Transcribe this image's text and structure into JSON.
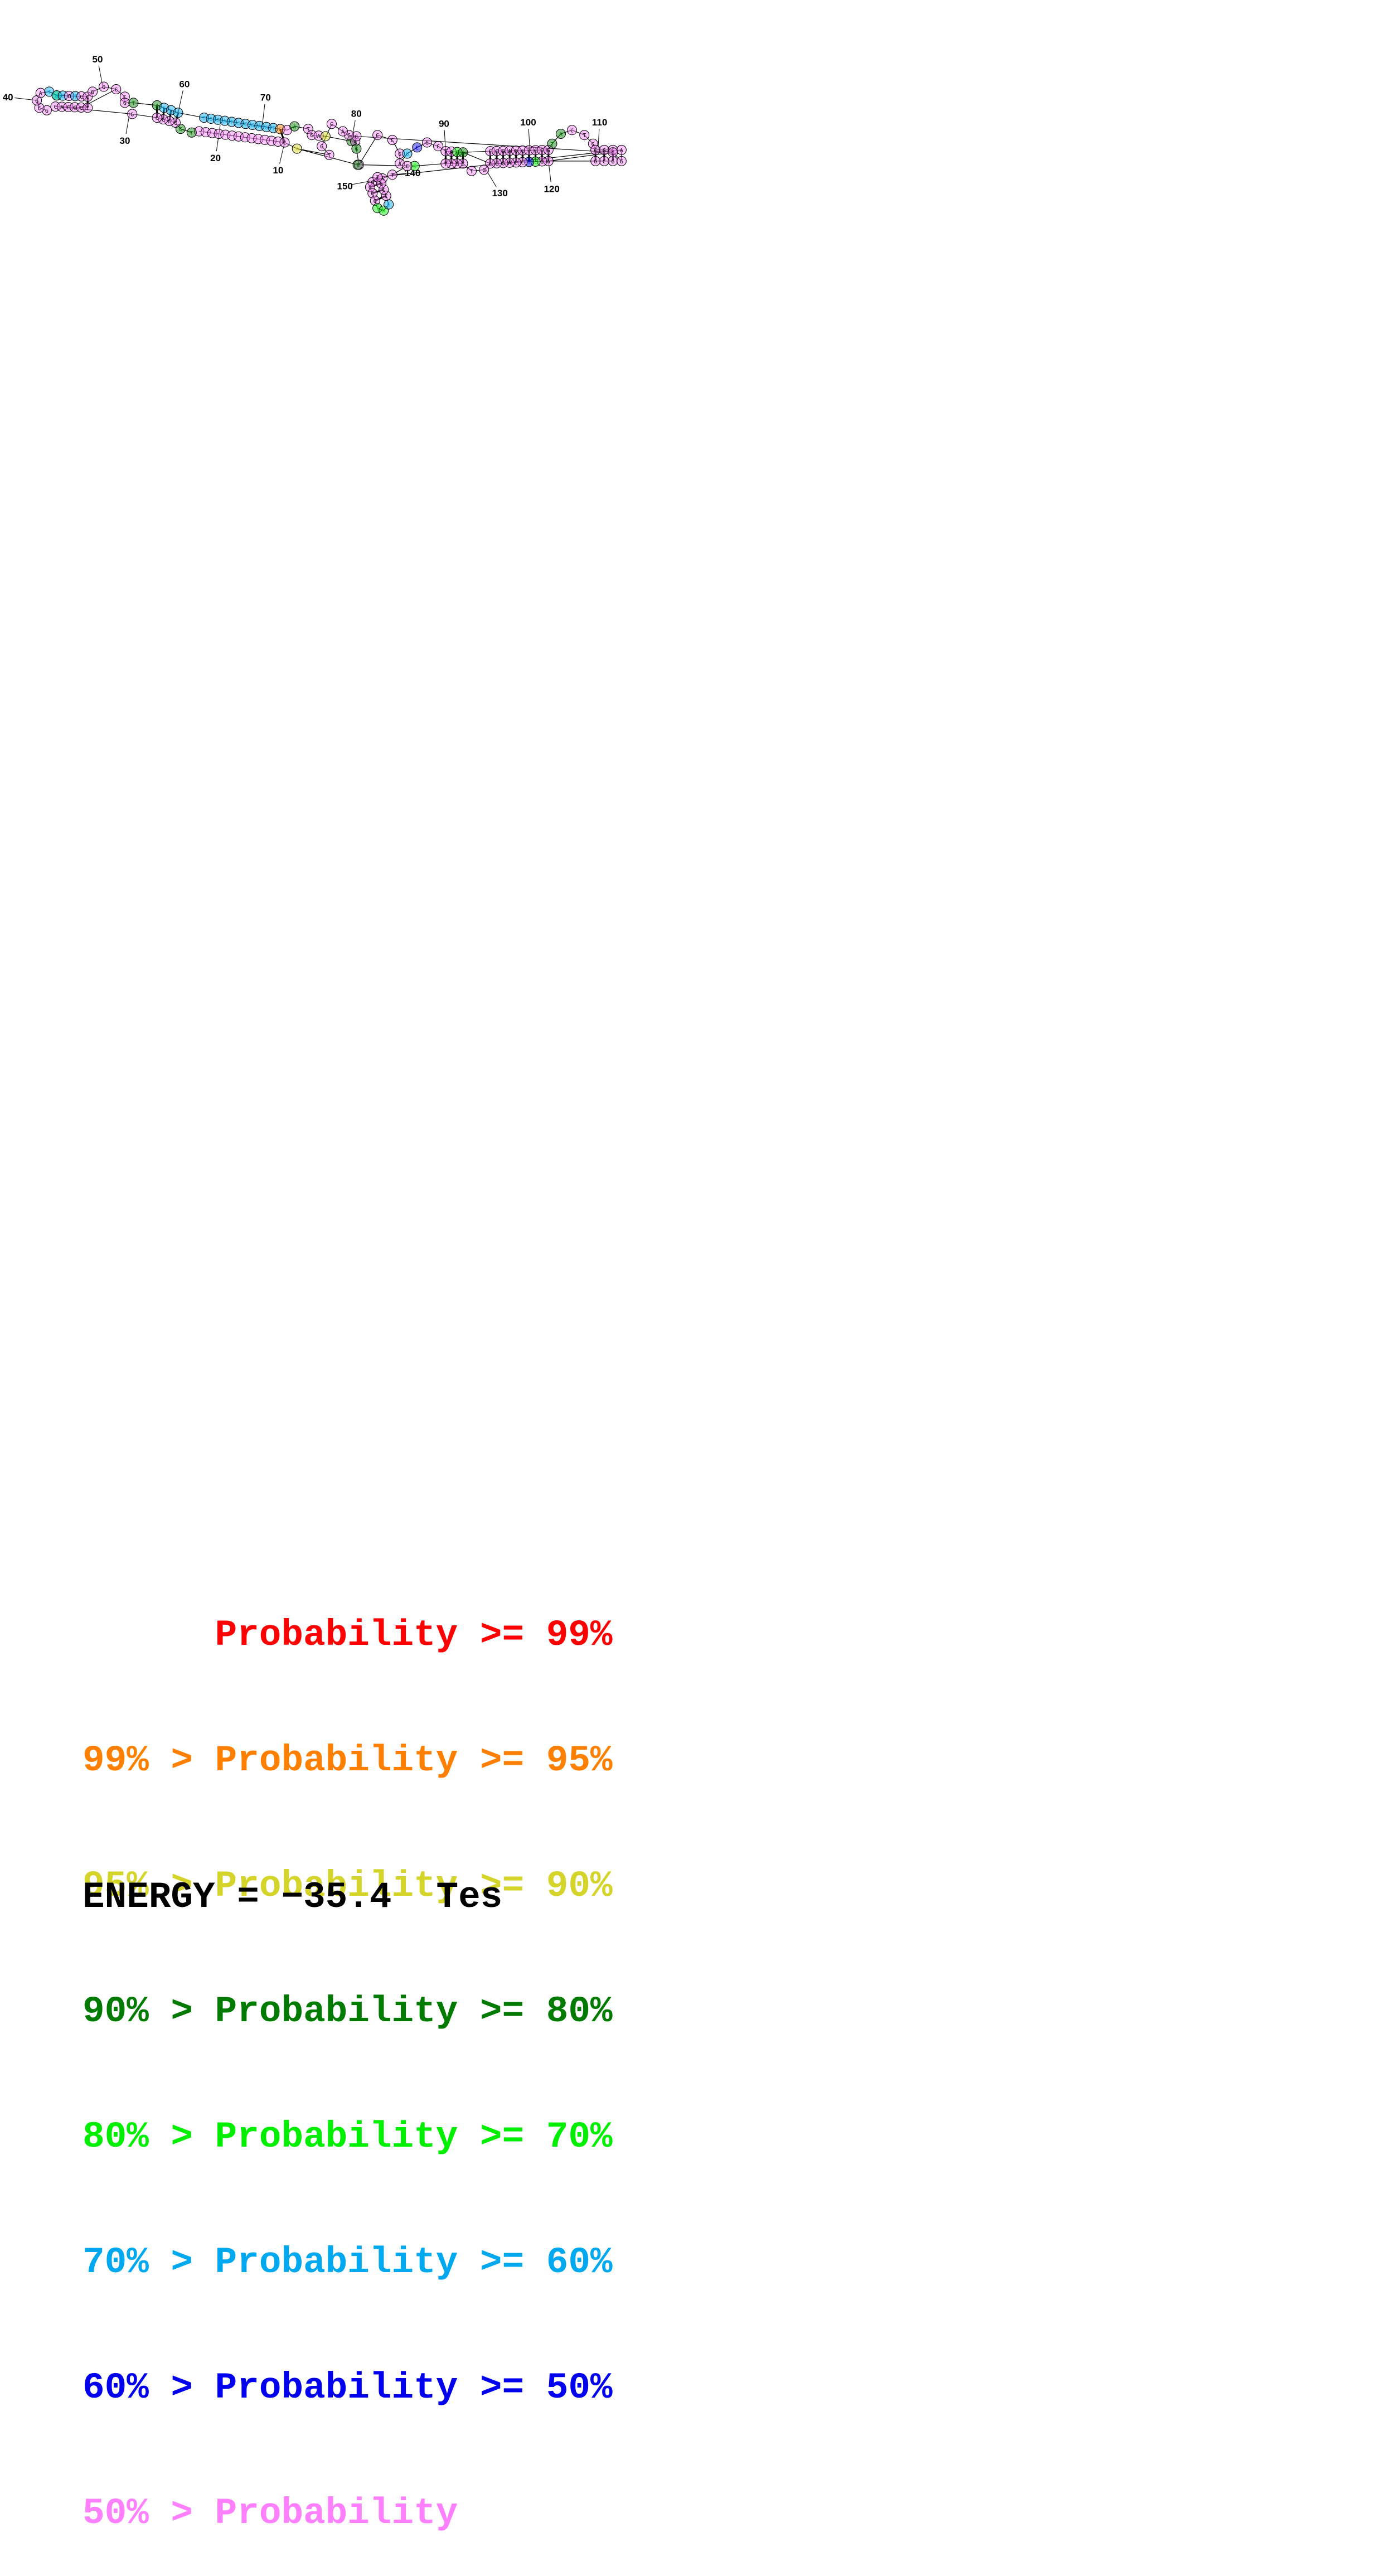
{
  "legend": [
    {
      "prefix": "",
      "label": "Probability >= 99%",
      "color": "#ff0000"
    },
    {
      "prefix": "99% > ",
      "label": "Probability >= 95%",
      "color": "#ff8000"
    },
    {
      "prefix": "95% > ",
      "label": "Probability >= 90%",
      "color": "#d4d42a"
    },
    {
      "prefix": "90% > ",
      "label": "Probability >= 80%",
      "color": "#007a00"
    },
    {
      "prefix": "80% > ",
      "label": "Probability >= 70%",
      "color": "#00ee00"
    },
    {
      "prefix": "70% > ",
      "label": "Probability >= 60%",
      "color": "#00a8f0"
    },
    {
      "prefix": "60% > ",
      "label": "Probability >= 50%",
      "color": "#0000ee"
    },
    {
      "prefix": "50% > ",
      "label": "Probability",
      "color": "#ff80ff"
    }
  ],
  "energy": {
    "label": "ENERGY = ",
    "value": "−35.4",
    "name": "Tes"
  },
  "position_labels": [
    "10",
    "20",
    "30",
    "40",
    "50",
    "60",
    "70",
    "80",
    "90",
    "100",
    "110",
    "120",
    "130",
    "140",
    "150"
  ],
  "bases": {
    "10": "C",
    "11": "A",
    "12": "G",
    "13": "T",
    "14": "A",
    "15": "C",
    "16": "C",
    "17": "G",
    "18": "A",
    "19": "C",
    "20": "G",
    "21": "T",
    "22": "C",
    "23": "C",
    "26": "T",
    "27": "G",
    "28": "C",
    "29": "C",
    "30": "C",
    "31": "C",
    "32": "G",
    "33": "C",
    "34": "A",
    "35": "C",
    "36": "C",
    "37": "C",
    "38": "T",
    "39": "G",
    "40": "C",
    "41": "A",
    "42": "T",
    "43": "G",
    "44": "G",
    "45": "C",
    "46": "G",
    "47": "A",
    "48": "T",
    "49": "A",
    "50": "G",
    "51": "C",
    "52": "C",
    "53": "T",
    "54": "C",
    "55": "C",
    "56": "G",
    "57": "G",
    "60": "C",
    "61": "C",
    "62": "G",
    "63": "T",
    "64": "A",
    "65": "G",
    "66": "C",
    "67": "C",
    "68": "T",
    "69": "G",
    "70": "C",
    "71": "A",
    "72": "T",
    "73": "C",
    "74": "C",
    "75": "G",
    "76": "A",
    "77": "G",
    "78": "T",
    "79": "C",
    "81": "A",
    "82": "T",
    "83": "G",
    "84": "A",
    "85": "C",
    "86": "G",
    "87": "A",
    "88": "G",
    "89": "T",
    "90": "C",
    "91": "C",
    "92": "G",
    "93": "A",
    "94": "G",
    "95": "C",
    "96": "G",
    "97": "C",
    "98": "T",
    "99": "A",
    "100": "T",
    "101": "G",
    "102": "C",
    "103": "C",
    "104": "G",
    "105": "A",
    "106": "G",
    "107": "C",
    "108": "T",
    "109": "C",
    "110": "C",
    "111": "G",
    "112": "T",
    "113": "A",
    "114": "C",
    "115": "T",
    "116": "G",
    "117": "C",
    "118": "G",
    "119": "C",
    "120": "G",
    "121": "C",
    "122": "G",
    "123": "A",
    "124": "G",
    "125": "C",
    "126": "T",
    "127": "C",
    "128": "C",
    "129": "A",
    "130": "G",
    "131": "C",
    "132": "C",
    "133": "G",
    "134": "T",
    "135": "C",
    "136": "G",
    "137": "C",
    "138": "T",
    "139": "G",
    "140": "C",
    "141": "T",
    "142": "A",
    "143": "G",
    "144": "C",
    "145": "C",
    "146": "G",
    "147": "T",
    "148": "A",
    "149": "G",
    "150": "C",
    "151": "C",
    "152": "G",
    "153": "T",
    "154": "A",
    "155": "G",
    "156": "C",
    "157": "C",
    "158": "G",
    "159": "A",
    "160": "C",
    "161": "G",
    "162": "T",
    "163": "A",
    "164": "T"
  },
  "base_colors": {
    "13": "#00ee00",
    "17": "#00a8f0",
    "18": "#00a8f0",
    "19": "#00a8f0",
    "20": "#00a8f0",
    "21": "#00a8f0",
    "22": "#00a8f0",
    "23": "#00a8f0",
    "26": "#007a00",
    "27": "#007a00",
    "41": "#0000ee",
    "42": "#0000ee",
    "48": "#00a8f0",
    "49": "#00ee00",
    "50": "#00a8f0",
    "51": "#00a8f0",
    "53": "#00a8f0",
    "63": "#007a00",
    "64": "#007a00",
    "65": "#00a8f0",
    "66": "#00a8f0",
    "67": "#00a8f0",
    "68": "#00a8f0",
    "69": "#00a8f0",
    "70": "#00a8f0",
    "71": "#00a8f0",
    "72": "#00a8f0",
    "73": "#00a8f0",
    "74": "#00a8f0",
    "75": "#00a8f0",
    "76": "#00a8f0",
    "77": "#00a8f0",
    "78": "#00a8f0",
    "79": "#ff8000",
    "81": "#007a00",
    "85": "#d4d42a",
    "86": "#007a00",
    "88": "#007a00",
    "94": "#00a8f0",
    "95": "#0000ee",
    "100": "#00ee00",
    "101": "#007a00",
    "112": "#007a00",
    "113": "#007a00",
    "125": "#00ee00",
    "126": "#0000ee",
    "139": "#00ee00",
    "147": "#00ee00",
    "148": "#00ee00",
    "149": "#00a8f0",
    "163": "#d4d42a",
    "164": "#007a00"
  }
}
